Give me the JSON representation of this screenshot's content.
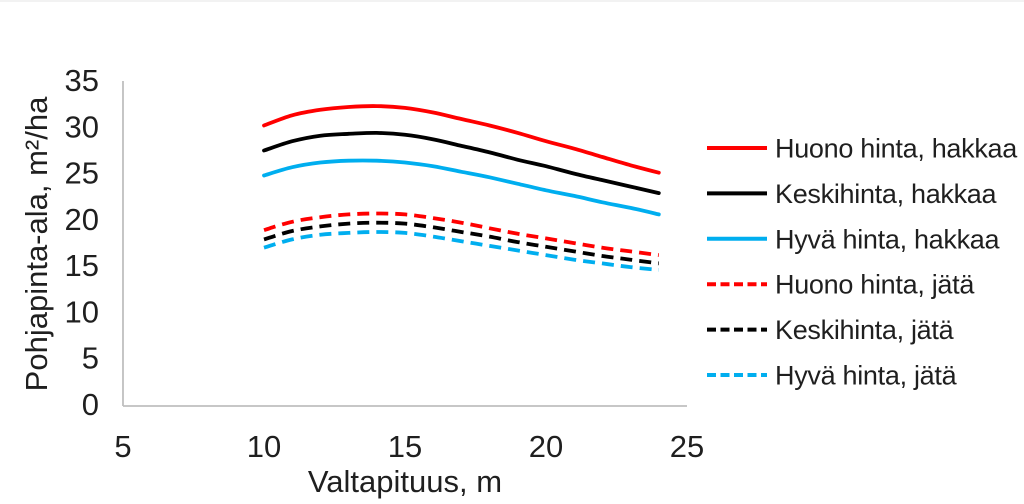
{
  "chart_data": {
    "type": "line",
    "title": "",
    "xlabel": "Valtapituus, m",
    "ylabel": "Pohjapinta-ala, m²/ha",
    "xlim": [
      5,
      25
    ],
    "ylim": [
      0,
      35
    ],
    "xticks": [
      5,
      10,
      15,
      20,
      25
    ],
    "yticks": [
      0,
      5,
      10,
      15,
      20,
      25,
      30,
      35
    ],
    "grid": false,
    "legend_position": "right",
    "axis_color": "#bfbfbf",
    "text_color": "#1f1f1f",
    "x": [
      10,
      11,
      12,
      13,
      14,
      15,
      16,
      17,
      18,
      19,
      20,
      21,
      22,
      23,
      24
    ],
    "series": [
      {
        "name": "Huono hinta, hakkaa",
        "color": "#ff0000",
        "style": "solid",
        "values": [
          30.3,
          31.4,
          32.0,
          32.3,
          32.4,
          32.2,
          31.7,
          31.0,
          30.3,
          29.5,
          28.6,
          27.8,
          26.9,
          26.0,
          25.2
        ]
      },
      {
        "name": "Keskihinta, hakkaa",
        "color": "#000000",
        "style": "solid",
        "values": [
          27.6,
          28.6,
          29.2,
          29.4,
          29.5,
          29.3,
          28.8,
          28.1,
          27.4,
          26.6,
          25.9,
          25.1,
          24.4,
          23.7,
          23.0
        ]
      },
      {
        "name": "Hyvä hinta, hakkaa",
        "color": "#00aeef",
        "style": "solid",
        "values": [
          24.9,
          25.8,
          26.3,
          26.5,
          26.5,
          26.3,
          25.9,
          25.3,
          24.7,
          24.0,
          23.3,
          22.7,
          22.0,
          21.4,
          20.7
        ]
      },
      {
        "name": "Huono hinta, jätä",
        "color": "#ff0000",
        "style": "dashed",
        "values": [
          19.0,
          19.9,
          20.4,
          20.7,
          20.8,
          20.7,
          20.3,
          19.8,
          19.2,
          18.6,
          18.1,
          17.6,
          17.1,
          16.7,
          16.3
        ]
      },
      {
        "name": "Keskihinta, jätä",
        "color": "#000000",
        "style": "dashed",
        "values": [
          18.0,
          18.9,
          19.4,
          19.7,
          19.8,
          19.7,
          19.3,
          18.8,
          18.3,
          17.7,
          17.2,
          16.7,
          16.2,
          15.8,
          15.4
        ]
      },
      {
        "name": "Hyvä hinta, jätä",
        "color": "#00aeef",
        "style": "dashed",
        "values": [
          17.1,
          18.0,
          18.5,
          18.7,
          18.8,
          18.7,
          18.3,
          17.8,
          17.3,
          16.8,
          16.3,
          15.8,
          15.4,
          15.0,
          14.7
        ]
      }
    ]
  }
}
